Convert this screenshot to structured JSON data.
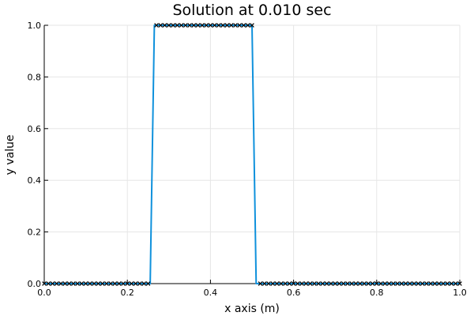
{
  "chart_data": {
    "type": "line",
    "title": "Solution at 0.010 sec",
    "xlabel": "x axis (m)",
    "ylabel": "y value",
    "xlim": [
      0,
      1
    ],
    "ylim": [
      0,
      1
    ],
    "xticks": [
      "0.0",
      "0.2",
      "0.4",
      "0.6",
      "0.8",
      "1.0"
    ],
    "yticks": [
      "0.0",
      "0.2",
      "0.4",
      "0.6",
      "0.8",
      "1.0"
    ],
    "grid": true,
    "legend": "none",
    "series": [
      {
        "color": "#0f91dc",
        "x": [
          0.0,
          0.255,
          0.265,
          0.5,
          0.51,
          1.0
        ],
        "y": [
          0.0,
          0.0,
          1.0,
          1.0,
          0.0,
          0.0
        ]
      },
      {
        "color": "#000000",
        "marker": "x",
        "x": [
          0.0,
          0.01,
          0.02,
          0.03,
          0.04,
          0.05,
          0.06,
          0.07,
          0.08,
          0.09,
          0.1,
          0.11,
          0.12,
          0.13,
          0.14,
          0.15,
          0.16,
          0.17,
          0.18,
          0.19,
          0.2,
          0.21,
          0.22,
          0.23,
          0.24,
          0.25,
          0.27,
          0.28,
          0.29,
          0.3,
          0.31,
          0.32,
          0.33,
          0.34,
          0.35,
          0.36,
          0.37,
          0.38,
          0.39,
          0.4,
          0.41,
          0.42,
          0.43,
          0.44,
          0.45,
          0.46,
          0.47,
          0.48,
          0.49,
          0.5,
          0.52,
          0.53,
          0.54,
          0.55,
          0.56,
          0.57,
          0.58,
          0.59,
          0.6,
          0.61,
          0.62,
          0.63,
          0.64,
          0.65,
          0.66,
          0.67,
          0.68,
          0.69,
          0.7,
          0.71,
          0.72,
          0.73,
          0.74,
          0.75,
          0.76,
          0.77,
          0.78,
          0.79,
          0.8,
          0.81,
          0.82,
          0.83,
          0.84,
          0.85,
          0.86,
          0.87,
          0.88,
          0.89,
          0.9,
          0.91,
          0.92,
          0.93,
          0.94,
          0.95,
          0.96,
          0.97,
          0.98,
          0.99,
          1.0
        ],
        "y": [
          0,
          0,
          0,
          0,
          0,
          0,
          0,
          0,
          0,
          0,
          0,
          0,
          0,
          0,
          0,
          0,
          0,
          0,
          0,
          0,
          0,
          0,
          0,
          0,
          0,
          0,
          1,
          1,
          1,
          1,
          1,
          1,
          1,
          1,
          1,
          1,
          1,
          1,
          1,
          1,
          1,
          1,
          1,
          1,
          1,
          1,
          1,
          1,
          1,
          1,
          0,
          0,
          0,
          0,
          0,
          0,
          0,
          0,
          0,
          0,
          0,
          0,
          0,
          0,
          0,
          0,
          0,
          0,
          0,
          0,
          0,
          0,
          0,
          0,
          0,
          0,
          0,
          0,
          0,
          0,
          0,
          0,
          0,
          0,
          0,
          0,
          0,
          0,
          0,
          0,
          0,
          0,
          0,
          0,
          0,
          0,
          0,
          0,
          0
        ]
      }
    ]
  }
}
